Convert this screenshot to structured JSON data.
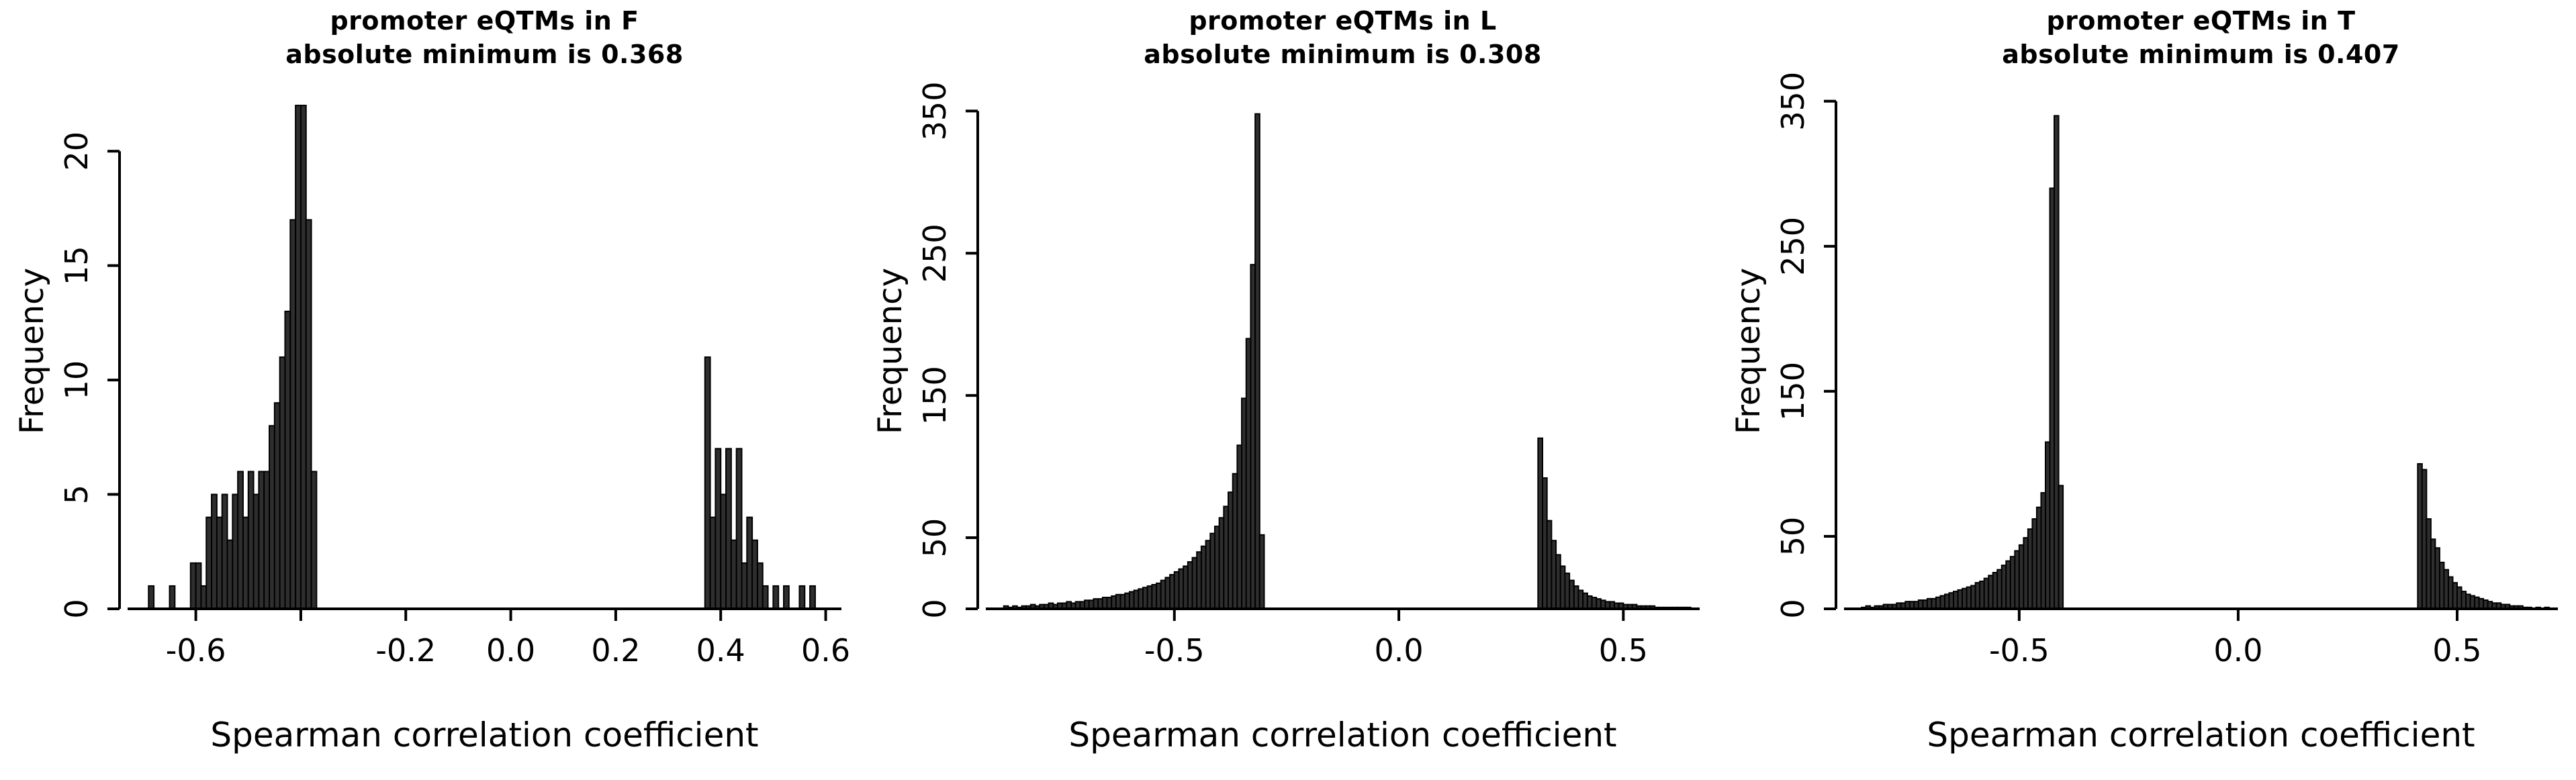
{
  "figure": {
    "background": "#ffffff",
    "text_color": "#000000"
  },
  "chart_data": [
    {
      "type": "bar",
      "subtype": "histogram",
      "panel": "F",
      "title_line1": "promoter eQTMs in F",
      "title_line2": "absolute minimum is 0.368",
      "xlabel": "Spearman correlation coefficient",
      "ylabel": "Frequency",
      "xlim": [
        -0.73,
        0.63
      ],
      "ylim": [
        0,
        22.5
      ],
      "bin_width": 0.01,
      "x_ticks": [
        -0.6,
        -0.4,
        -0.2,
        0.0,
        0.2,
        0.4,
        0.6
      ],
      "x_tick_labels": [
        "-0.6",
        "",
        "-0.2",
        "0.0",
        "0.2",
        "0.4",
        "0.6"
      ],
      "y_ticks": [
        0,
        5,
        10,
        15,
        20
      ],
      "y_tick_labels": [
        "0",
        "5",
        "10",
        "15",
        "20"
      ],
      "bar_fill": "#2e2e2e",
      "bar_stroke": "#000000",
      "bars": [
        [
          -0.69,
          1
        ],
        [
          -0.65,
          1
        ],
        [
          -0.61,
          2
        ],
        [
          -0.6,
          2
        ],
        [
          -0.59,
          1
        ],
        [
          -0.58,
          4
        ],
        [
          -0.57,
          5
        ],
        [
          -0.56,
          4
        ],
        [
          -0.55,
          5
        ],
        [
          -0.54,
          3
        ],
        [
          -0.53,
          5
        ],
        [
          -0.52,
          6
        ],
        [
          -0.51,
          4
        ],
        [
          -0.5,
          6
        ],
        [
          -0.49,
          5
        ],
        [
          -0.48,
          6
        ],
        [
          -0.47,
          6
        ],
        [
          -0.46,
          8
        ],
        [
          -0.45,
          9
        ],
        [
          -0.44,
          11
        ],
        [
          -0.43,
          13
        ],
        [
          -0.42,
          17
        ],
        [
          -0.41,
          22
        ],
        [
          -0.4,
          22
        ],
        [
          -0.39,
          17
        ],
        [
          -0.38,
          6
        ],
        [
          0.37,
          11
        ],
        [
          0.38,
          4
        ],
        [
          0.39,
          7
        ],
        [
          0.4,
          5
        ],
        [
          0.41,
          7
        ],
        [
          0.42,
          3
        ],
        [
          0.43,
          7
        ],
        [
          0.44,
          2
        ],
        [
          0.45,
          4
        ],
        [
          0.46,
          3
        ],
        [
          0.47,
          2
        ],
        [
          0.48,
          1
        ],
        [
          0.5,
          1
        ],
        [
          0.52,
          1
        ],
        [
          0.55,
          1
        ],
        [
          0.57,
          1
        ]
      ]
    },
    {
      "type": "bar",
      "subtype": "histogram",
      "panel": "L",
      "title_line1": "promoter eQTMs in L",
      "title_line2": "absolute minimum is 0.308",
      "xlabel": "Spearman correlation coefficient",
      "ylabel": "Frequency",
      "xlim": [
        -0.92,
        0.67
      ],
      "ylim": [
        0,
        362
      ],
      "bin_width": 0.01,
      "x_ticks": [
        -0.5,
        0.0,
        0.5
      ],
      "x_tick_labels": [
        "-0.5",
        "0.0",
        "0.5"
      ],
      "y_ticks": [
        0,
        50,
        150,
        250,
        350
      ],
      "y_tick_labels": [
        "0",
        "50",
        "150",
        "250",
        "350"
      ],
      "bar_fill": "#2e2e2e",
      "bar_stroke": "#000000",
      "bars": [
        [
          -0.88,
          2
        ],
        [
          -0.87,
          1
        ],
        [
          -0.86,
          2
        ],
        [
          -0.85,
          1
        ],
        [
          -0.84,
          2
        ],
        [
          -0.83,
          2
        ],
        [
          -0.82,
          3
        ],
        [
          -0.81,
          2
        ],
        [
          -0.8,
          3
        ],
        [
          -0.79,
          3
        ],
        [
          -0.78,
          4
        ],
        [
          -0.77,
          3
        ],
        [
          -0.76,
          4
        ],
        [
          -0.75,
          4
        ],
        [
          -0.74,
          5
        ],
        [
          -0.73,
          4
        ],
        [
          -0.72,
          5
        ],
        [
          -0.71,
          5
        ],
        [
          -0.7,
          6
        ],
        [
          -0.69,
          6
        ],
        [
          -0.68,
          7
        ],
        [
          -0.67,
          7
        ],
        [
          -0.66,
          8
        ],
        [
          -0.65,
          8
        ],
        [
          -0.64,
          9
        ],
        [
          -0.63,
          10
        ],
        [
          -0.62,
          10
        ],
        [
          -0.61,
          11
        ],
        [
          -0.6,
          12
        ],
        [
          -0.59,
          13
        ],
        [
          -0.58,
          14
        ],
        [
          -0.57,
          15
        ],
        [
          -0.56,
          16
        ],
        [
          -0.55,
          17
        ],
        [
          -0.54,
          18
        ],
        [
          -0.53,
          20
        ],
        [
          -0.52,
          22
        ],
        [
          -0.51,
          24
        ],
        [
          -0.5,
          26
        ],
        [
          -0.49,
          28
        ],
        [
          -0.48,
          30
        ],
        [
          -0.47,
          33
        ],
        [
          -0.46,
          36
        ],
        [
          -0.45,
          40
        ],
        [
          -0.44,
          44
        ],
        [
          -0.43,
          48
        ],
        [
          -0.42,
          53
        ],
        [
          -0.41,
          58
        ],
        [
          -0.4,
          64
        ],
        [
          -0.39,
          72
        ],
        [
          -0.38,
          82
        ],
        [
          -0.37,
          95
        ],
        [
          -0.36,
          115
        ],
        [
          -0.35,
          148
        ],
        [
          -0.34,
          190
        ],
        [
          -0.33,
          242
        ],
        [
          -0.32,
          348
        ],
        [
          -0.31,
          52
        ],
        [
          0.31,
          120
        ],
        [
          0.32,
          92
        ],
        [
          0.33,
          62
        ],
        [
          0.34,
          48
        ],
        [
          0.35,
          38
        ],
        [
          0.36,
          30
        ],
        [
          0.37,
          25
        ],
        [
          0.38,
          20
        ],
        [
          0.39,
          16
        ],
        [
          0.4,
          13
        ],
        [
          0.41,
          11
        ],
        [
          0.42,
          9
        ],
        [
          0.43,
          8
        ],
        [
          0.44,
          7
        ],
        [
          0.45,
          6
        ],
        [
          0.46,
          5
        ],
        [
          0.47,
          5
        ],
        [
          0.48,
          4
        ],
        [
          0.49,
          4
        ],
        [
          0.5,
          3
        ],
        [
          0.51,
          3
        ],
        [
          0.52,
          3
        ],
        [
          0.53,
          2
        ],
        [
          0.54,
          2
        ],
        [
          0.55,
          2
        ],
        [
          0.56,
          2
        ],
        [
          0.57,
          1
        ],
        [
          0.58,
          1
        ],
        [
          0.59,
          1
        ],
        [
          0.6,
          1
        ],
        [
          0.61,
          1
        ],
        [
          0.62,
          1
        ],
        [
          0.63,
          1
        ],
        [
          0.64,
          1
        ]
      ]
    },
    {
      "type": "bar",
      "subtype": "histogram",
      "panel": "T",
      "title_line1": "promoter eQTMs in T",
      "title_line2": "absolute minimum is 0.407",
      "xlabel": "Spearman correlation coefficient",
      "ylabel": "Frequency",
      "xlim": [
        -0.9,
        0.73
      ],
      "ylim": [
        0,
        355
      ],
      "bin_width": 0.01,
      "x_ticks": [
        -0.5,
        0.0,
        0.5
      ],
      "x_tick_labels": [
        "-0.5",
        "0.0",
        "0.5"
      ],
      "y_ticks": [
        0,
        50,
        150,
        250,
        350
      ],
      "y_tick_labels": [
        "0",
        "50",
        "150",
        "250",
        "350"
      ],
      "bar_fill": "#2e2e2e",
      "bar_stroke": "#000000",
      "bars": [
        [
          -0.86,
          1
        ],
        [
          -0.85,
          2
        ],
        [
          -0.84,
          1
        ],
        [
          -0.83,
          2
        ],
        [
          -0.82,
          2
        ],
        [
          -0.81,
          3
        ],
        [
          -0.8,
          3
        ],
        [
          -0.79,
          3
        ],
        [
          -0.78,
          4
        ],
        [
          -0.77,
          4
        ],
        [
          -0.76,
          5
        ],
        [
          -0.75,
          5
        ],
        [
          -0.74,
          5
        ],
        [
          -0.73,
          6
        ],
        [
          -0.72,
          6
        ],
        [
          -0.71,
          7
        ],
        [
          -0.7,
          7
        ],
        [
          -0.69,
          8
        ],
        [
          -0.68,
          9
        ],
        [
          -0.67,
          10
        ],
        [
          -0.66,
          11
        ],
        [
          -0.65,
          12
        ],
        [
          -0.64,
          13
        ],
        [
          -0.63,
          14
        ],
        [
          -0.62,
          15
        ],
        [
          -0.61,
          16
        ],
        [
          -0.6,
          18
        ],
        [
          -0.59,
          19
        ],
        [
          -0.58,
          21
        ],
        [
          -0.57,
          23
        ],
        [
          -0.56,
          25
        ],
        [
          -0.55,
          27
        ],
        [
          -0.54,
          30
        ],
        [
          -0.53,
          33
        ],
        [
          -0.52,
          36
        ],
        [
          -0.51,
          40
        ],
        [
          -0.5,
          44
        ],
        [
          -0.49,
          49
        ],
        [
          -0.48,
          55
        ],
        [
          -0.47,
          62
        ],
        [
          -0.46,
          70
        ],
        [
          -0.45,
          80
        ],
        [
          -0.44,
          115
        ],
        [
          -0.43,
          290
        ],
        [
          -0.42,
          340
        ],
        [
          -0.41,
          85
        ],
        [
          0.41,
          100
        ],
        [
          0.42,
          96
        ],
        [
          0.43,
          62
        ],
        [
          0.44,
          48
        ],
        [
          0.45,
          42
        ],
        [
          0.46,
          32
        ],
        [
          0.47,
          27
        ],
        [
          0.48,
          22
        ],
        [
          0.49,
          18
        ],
        [
          0.5,
          15
        ],
        [
          0.51,
          12
        ],
        [
          0.52,
          10
        ],
        [
          0.53,
          9
        ],
        [
          0.54,
          8
        ],
        [
          0.55,
          7
        ],
        [
          0.56,
          6
        ],
        [
          0.57,
          5
        ],
        [
          0.58,
          4
        ],
        [
          0.59,
          4
        ],
        [
          0.6,
          3
        ],
        [
          0.61,
          3
        ],
        [
          0.62,
          2
        ],
        [
          0.63,
          2
        ],
        [
          0.64,
          2
        ],
        [
          0.65,
          1
        ],
        [
          0.66,
          1
        ],
        [
          0.68,
          1
        ],
        [
          0.7,
          1
        ]
      ]
    }
  ]
}
